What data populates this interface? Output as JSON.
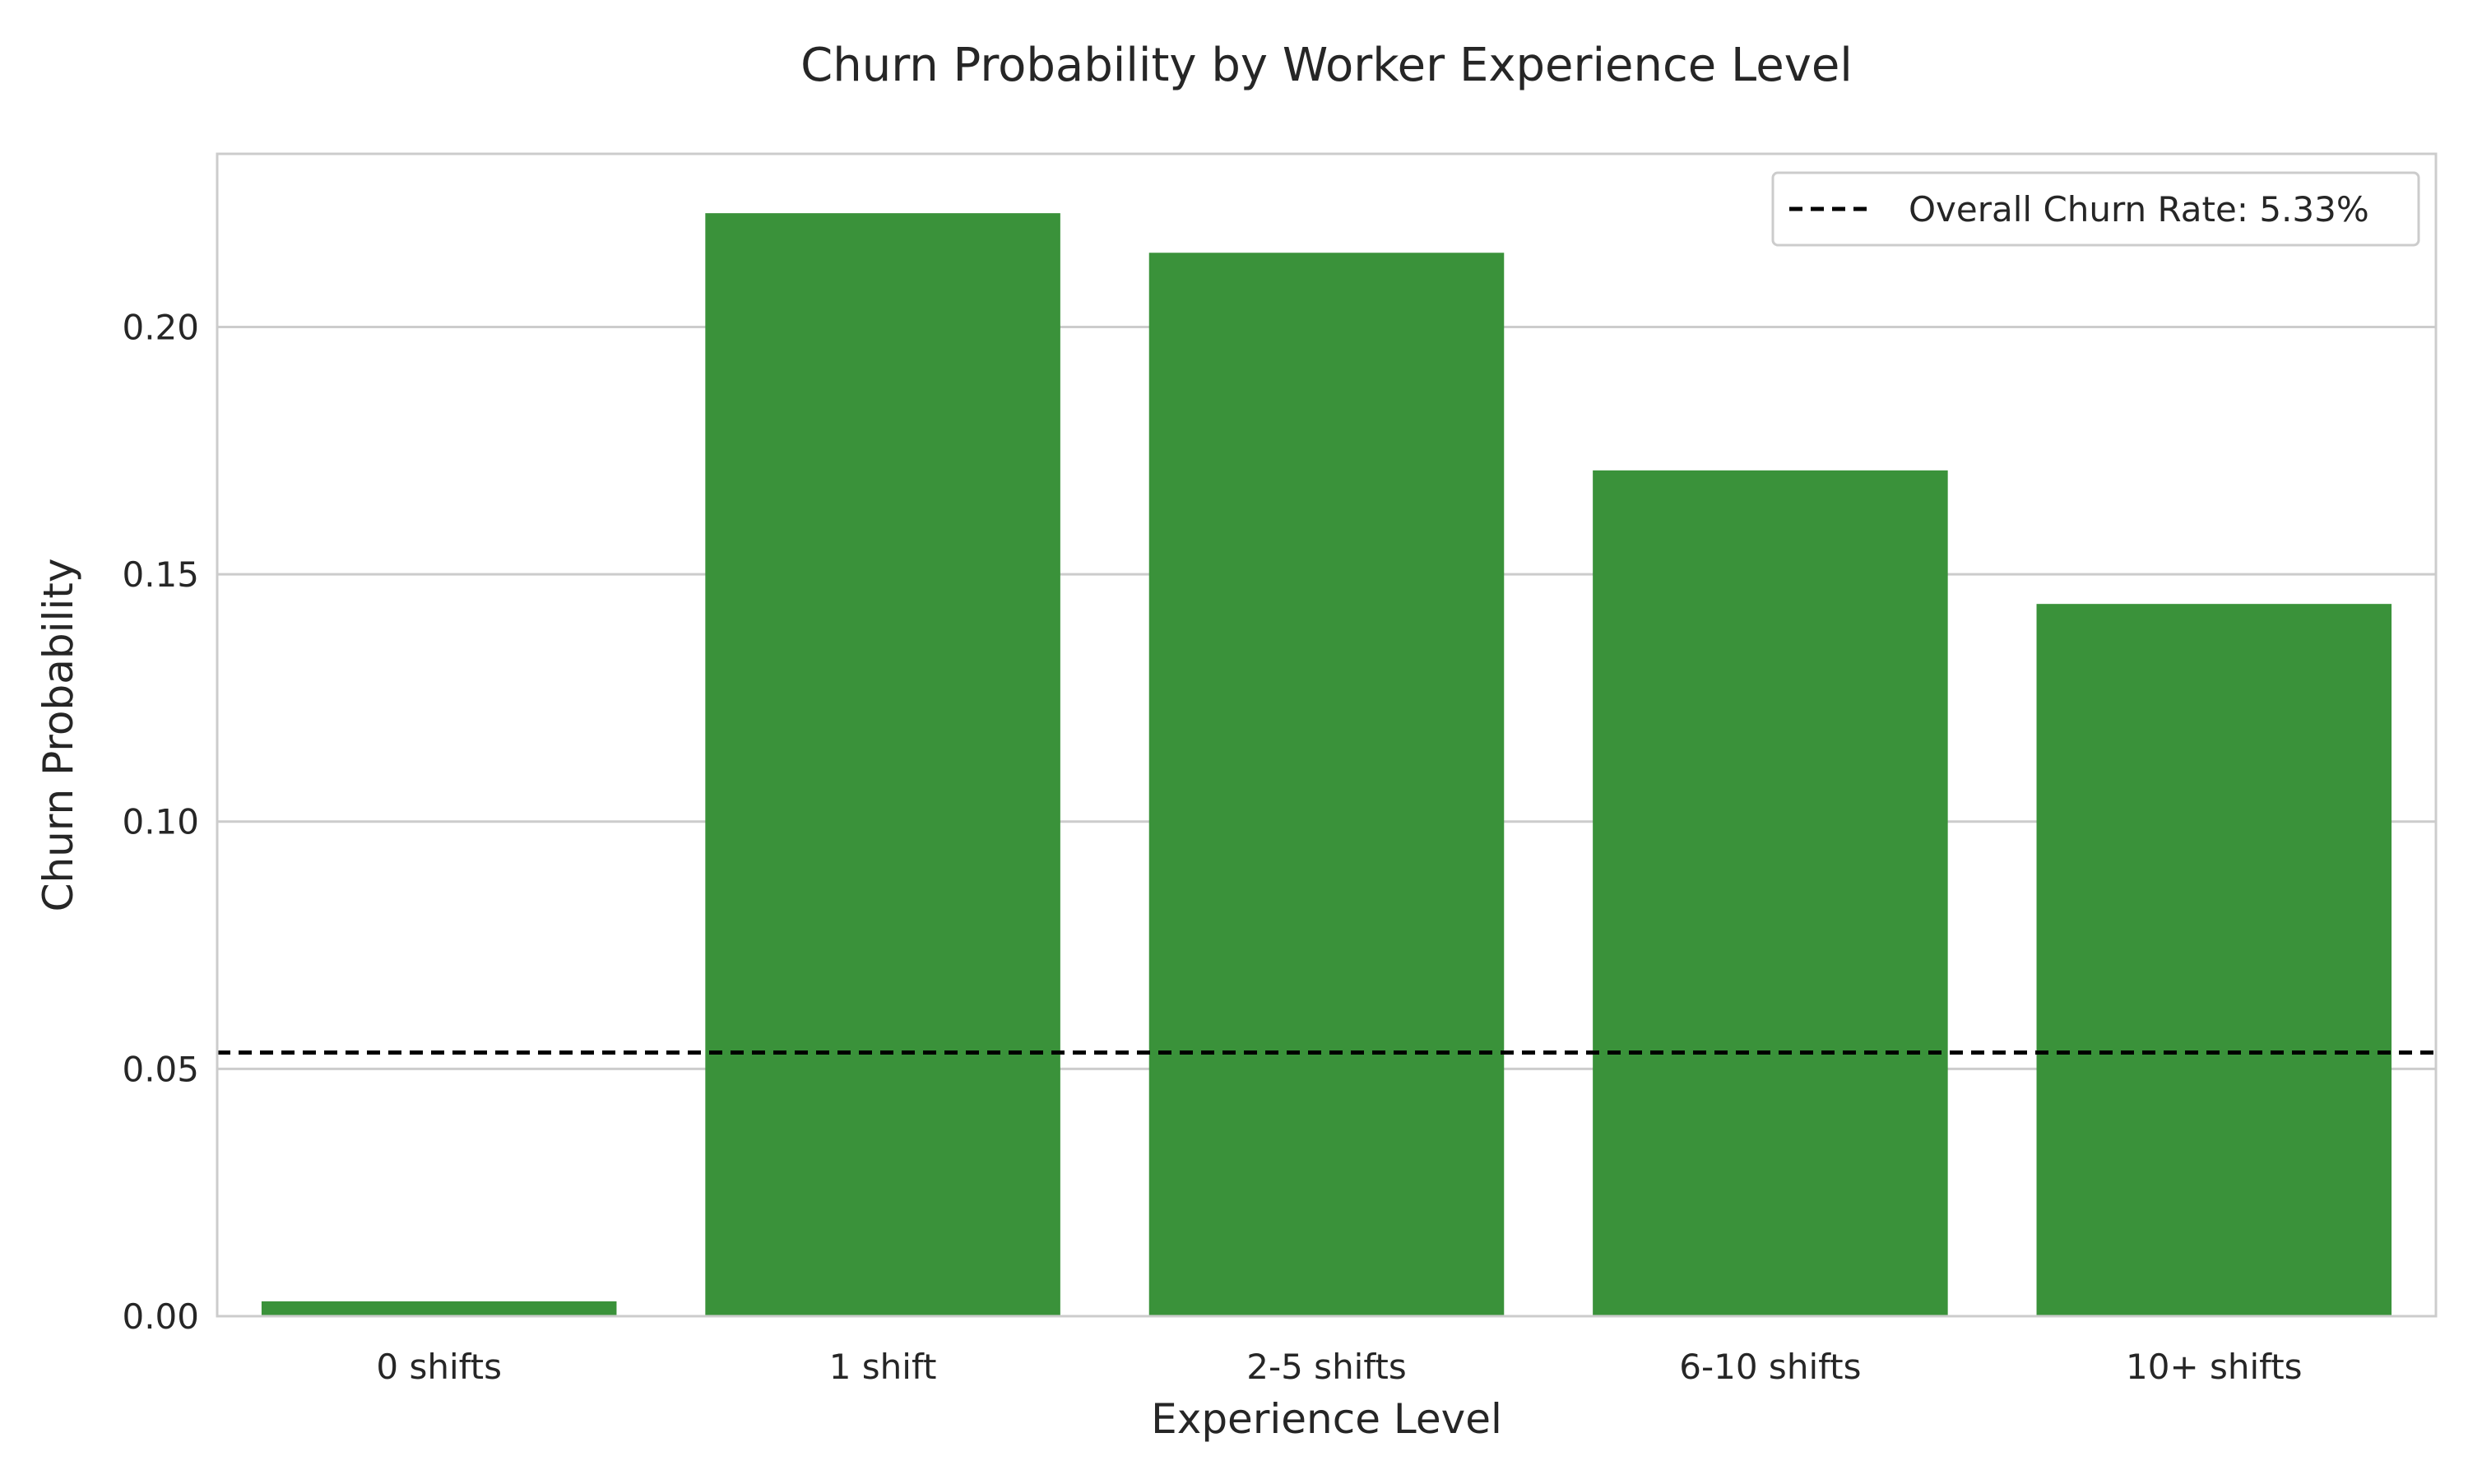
{
  "chart_data": {
    "type": "bar",
    "title": "Churn Probability by Worker Experience Level",
    "xlabel": "Experience Level",
    "ylabel": "Churn Probability",
    "categories": [
      "0 shifts",
      "1 shift",
      "2-5 shifts",
      "6-10 shifts",
      "10+ shifts"
    ],
    "values": [
      0.003,
      0.223,
      0.215,
      0.171,
      0.144
    ],
    "ylim": [
      0,
      0.235
    ],
    "yticks": [
      0.0,
      0.05,
      0.1,
      0.15,
      0.2
    ],
    "ytick_labels": [
      "0.00",
      "0.05",
      "0.10",
      "0.15",
      "0.20"
    ],
    "grid": "horizontal",
    "bar_color": "#3a923a",
    "reference_line": {
      "value": 0.0533,
      "label": "Overall Churn Rate: 5.33%",
      "style": "dashed",
      "color": "#000000"
    },
    "legend_position": "top-right"
  }
}
